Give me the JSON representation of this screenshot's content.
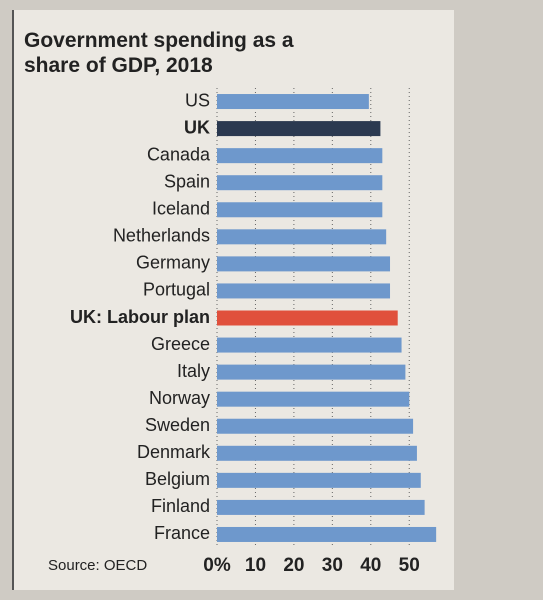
{
  "chart_data": {
    "type": "hbar",
    "title": "Government spending as a share of GDP, 2018",
    "source": "Source: OECD",
    "categories": [
      "US",
      "UK",
      "Canada",
      "Spain",
      "Iceland",
      "Netherlands",
      "Germany",
      "Portugal",
      "UK: Labour plan",
      "Greece",
      "Italy",
      "Norway",
      "Sweden",
      "Denmark",
      "Belgium",
      "Finland",
      "France"
    ],
    "values": [
      39.5,
      42.5,
      43,
      43,
      43,
      44,
      45,
      45,
      47,
      48,
      49,
      50,
      51,
      52,
      53,
      54,
      57
    ],
    "color": "#6e98cc",
    "colors": [
      "#6e98cc",
      "#2b3950",
      "#6e98cc",
      "#6e98cc",
      "#6e98cc",
      "#6e98cc",
      "#6e98cc",
      "#6e98cc",
      "#e0503c",
      "#6e98cc",
      "#6e98cc",
      "#6e98cc",
      "#6e98cc",
      "#6e98cc",
      "#6e98cc",
      "#6e98cc",
      "#6e98cc"
    ],
    "xlim": [
      0,
      58
    ],
    "xticks": [
      {
        "value": 0,
        "label": "0%"
      },
      10,
      20,
      30,
      40,
      50
    ],
    "grid": true
  }
}
